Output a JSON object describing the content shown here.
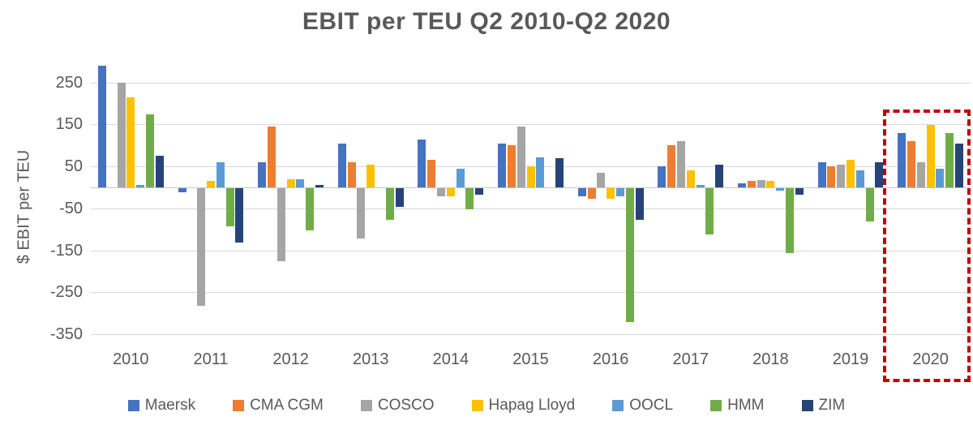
{
  "chart_data": {
    "type": "bar",
    "title": "EBIT per TEU Q2 2010-Q2 2020",
    "ylabel": "$ EBIT per TEU",
    "categories": [
      "2010",
      "2011",
      "2012",
      "2013",
      "2014",
      "2015",
      "2016",
      "2017",
      "2018",
      "2019",
      "2020"
    ],
    "y_ticks": [
      250,
      150,
      50,
      -50,
      -150,
      -250,
      -350
    ],
    "ylim": [
      -380,
      300
    ],
    "grid": "horizontal",
    "legend_position": "bottom",
    "series": [
      {
        "name": "Maersk",
        "color": "#4472C4",
        "values": [
          290,
          -10,
          60,
          105,
          115,
          105,
          -20,
          50,
          10,
          60,
          130
        ]
      },
      {
        "name": "CMA CGM",
        "color": "#ED7D31",
        "values": [
          null,
          null,
          145,
          60,
          65,
          100,
          -25,
          100,
          15,
          50,
          110
        ]
      },
      {
        "name": "COSCO",
        "color": "#A5A5A5",
        "values": [
          250,
          -280,
          -175,
          -120,
          -20,
          145,
          35,
          110,
          18,
          55,
          60
        ]
      },
      {
        "name": "Hapag Lloyd",
        "color": "#FFC000",
        "values": [
          215,
          15,
          20,
          55,
          -20,
          50,
          -25,
          40,
          15,
          65,
          148
        ]
      },
      {
        "name": "OOCL",
        "color": "#5B9BD5",
        "values": [
          5,
          60,
          20,
          null,
          45,
          72,
          -20,
          5,
          -5,
          40,
          45
        ]
      },
      {
        "name": "HMM",
        "color": "#70AD47",
        "values": [
          175,
          -90,
          -100,
          -75,
          -50,
          null,
          -320,
          -110,
          -155,
          -80,
          130
        ]
      },
      {
        "name": "ZIM",
        "color": "#264478",
        "values": [
          75,
          -130,
          5,
          -45,
          -15,
          70,
          -75,
          55,
          -15,
          60,
          105
        ]
      }
    ],
    "highlight": {
      "category": "2020",
      "box_color": "#C00000",
      "style": "dashed"
    }
  }
}
